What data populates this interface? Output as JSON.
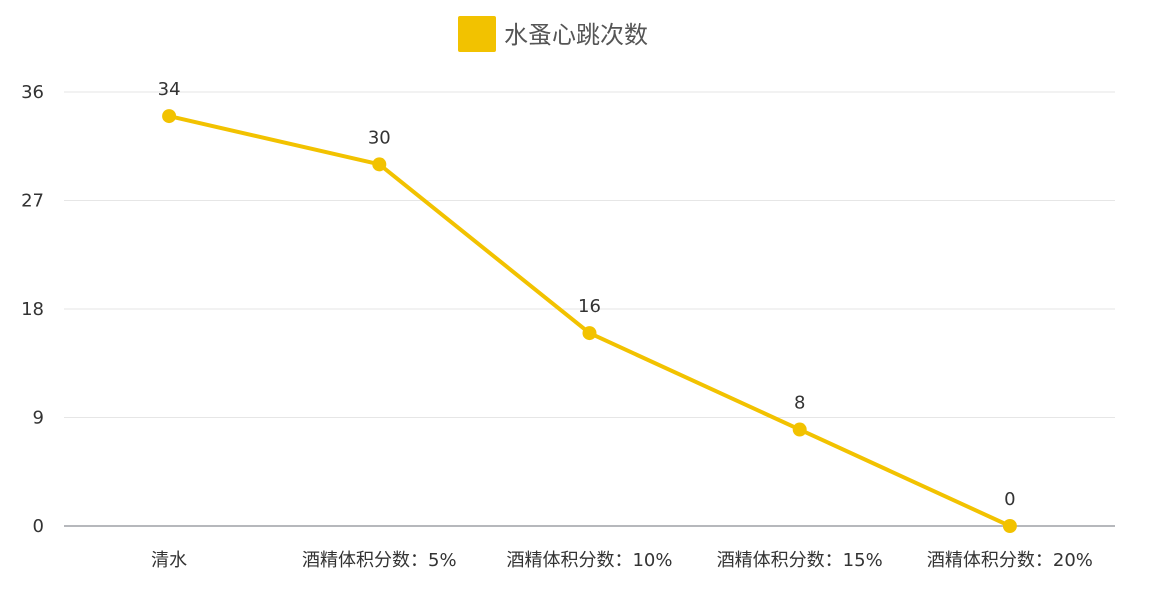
{
  "chart_data": {
    "type": "line",
    "categories": [
      "清水",
      "酒精体积分数：5%",
      "酒精体积分数：10%",
      "酒精体积分数：15%",
      "酒精体积分数：20%"
    ],
    "series": [
      {
        "name": "水蚤心跳次数",
        "values": [
          34,
          30,
          16,
          8,
          0
        ],
        "color": "#f2c200"
      }
    ],
    "yticks": [
      0,
      9,
      18,
      27,
      36
    ],
    "ylim": [
      0,
      36
    ],
    "grid": true,
    "legend_position": "top-center",
    "show_data_labels": true
  }
}
